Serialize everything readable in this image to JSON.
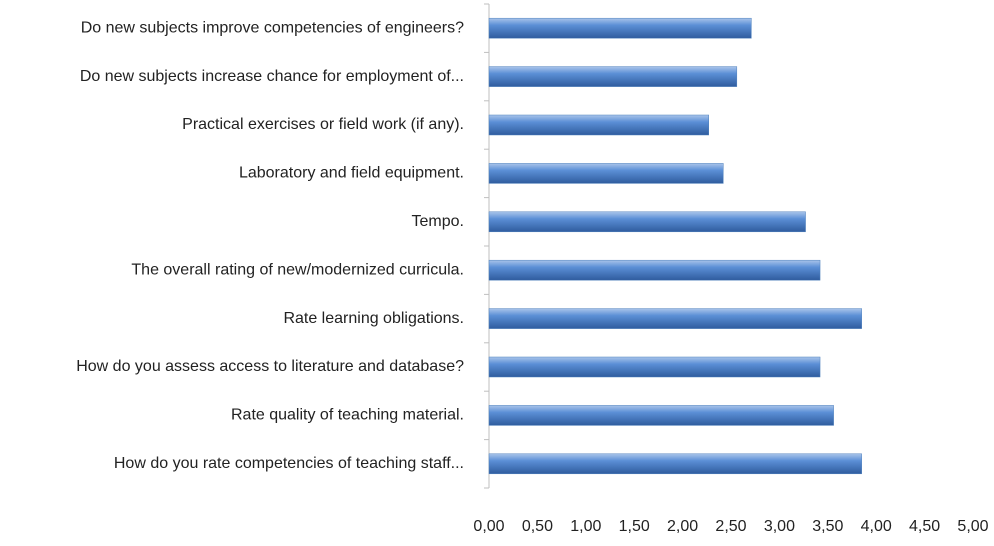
{
  "chart_data": {
    "type": "barh",
    "categories": [
      "Do new subjects improve competencies of engineers?",
      "Do new subjects increase chance for employment of...",
      "Practical exercises or field work (if any).",
      "Laboratory and field equipment.",
      "Tempo.",
      "The overall rating of new/modernized curricula.",
      "Rate learning obligations.",
      "How do you assess access to literature and database?",
      "Rate quality of teaching material.",
      "How do you rate competencies of teaching staff..."
    ],
    "values": [
      2.71,
      2.56,
      2.27,
      2.42,
      3.27,
      3.42,
      3.85,
      3.42,
      3.56,
      3.85
    ],
    "color": "#4f81bd",
    "xlim": [
      0,
      5
    ],
    "xticks": [
      {
        "value": 0,
        "label": "0,00"
      },
      {
        "value": 0.5,
        "label": "0,50"
      },
      {
        "value": 1,
        "label": "1,00"
      },
      {
        "value": 1.5,
        "label": "1,50"
      },
      {
        "value": 2,
        "label": "2,00"
      },
      {
        "value": 2.5,
        "label": "2,50"
      },
      {
        "value": 3,
        "label": "3,00"
      },
      {
        "value": 3.5,
        "label": "3,50"
      },
      {
        "value": 4,
        "label": "4,00"
      },
      {
        "value": 4.5,
        "label": "4,50"
      },
      {
        "value": 5,
        "label": "5,00"
      }
    ],
    "grid": false
  }
}
